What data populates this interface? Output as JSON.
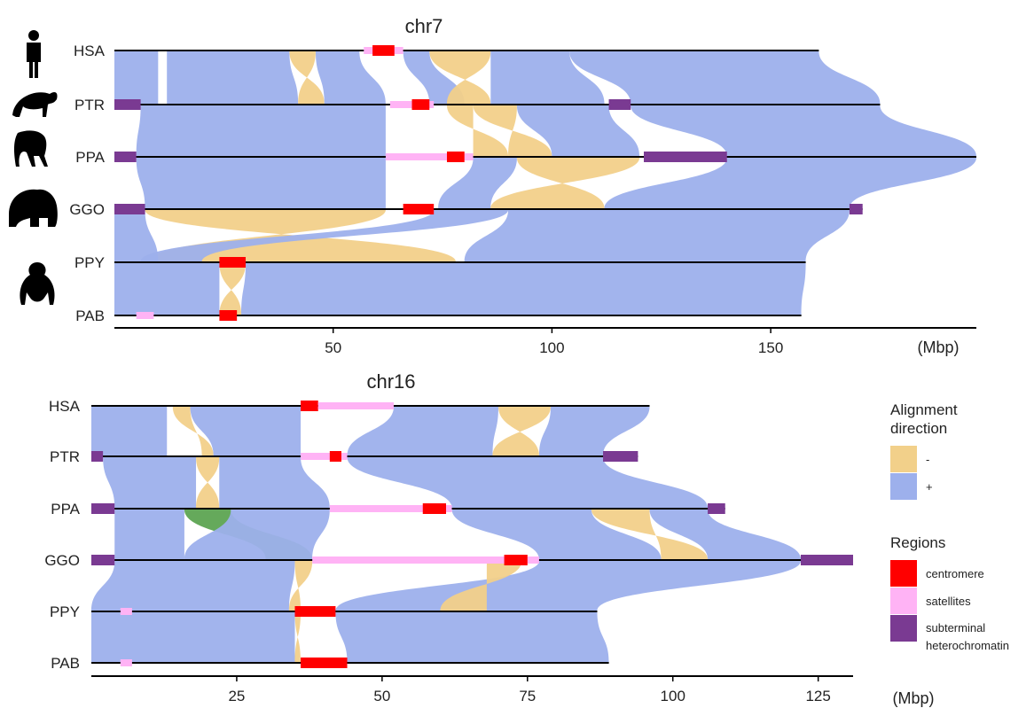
{
  "chart_data": [
    {
      "type": "synteny",
      "title": "chr7",
      "xlabel": "(Mbp)",
      "xlim": [
        0,
        197
      ],
      "ticks": [
        50,
        100,
        150
      ],
      "tracks": [
        {
          "name": "HSA",
          "length": 161,
          "icon": "human-icon",
          "regions": [
            {
              "type": "satellites",
              "start": 57,
              "end": 66
            },
            {
              "type": "centromere",
              "start": 59,
              "end": 64
            }
          ]
        },
        {
          "name": "PTR",
          "length": 175,
          "icon": "chimpanzee-icon",
          "regions": [
            {
              "type": "subterminal",
              "start": 0,
              "end": 6
            },
            {
              "type": "satellites",
              "start": 63,
              "end": 73
            },
            {
              "type": "centromere",
              "start": 68,
              "end": 72
            },
            {
              "type": "subterminal",
              "start": 113,
              "end": 118
            }
          ]
        },
        {
          "name": "PPA",
          "length": 197,
          "icon": "bonobo-icon",
          "regions": [
            {
              "type": "subterminal",
              "start": 0,
              "end": 5
            },
            {
              "type": "satellites",
              "start": 62,
              "end": 82
            },
            {
              "type": "centromere",
              "start": 76,
              "end": 80
            },
            {
              "type": "subterminal",
              "start": 121,
              "end": 140
            }
          ]
        },
        {
          "name": "GGO",
          "length": 171,
          "icon": "gorilla-icon",
          "regions": [
            {
              "type": "subterminal",
              "start": 0,
              "end": 7
            },
            {
              "type": "centromere",
              "start": 66,
              "end": 73
            },
            {
              "type": "subterminal",
              "start": 168,
              "end": 171
            }
          ]
        },
        {
          "name": "PPY",
          "length": 158,
          "icon": "orangutan-icon",
          "regions": [
            {
              "type": "centromere",
              "start": 24,
              "end": 30
            }
          ]
        },
        {
          "name": "PAB",
          "length": 157,
          "regions": [
            {
              "type": "satellites",
              "start": 5,
              "end": 9
            },
            {
              "type": "centromere",
              "start": 24,
              "end": 28
            }
          ]
        }
      ],
      "links": [
        {
          "from": 0,
          "a1": 0,
          "a2": 10,
          "b1": 0,
          "b2": 10,
          "dir": "+"
        },
        {
          "from": 0,
          "a1": 12,
          "a2": 40,
          "b1": 12,
          "b2": 42,
          "dir": "+"
        },
        {
          "from": 0,
          "a1": 40,
          "a2": 46,
          "b1": 42,
          "b2": 48,
          "dir": "-"
        },
        {
          "from": 0,
          "a1": 46,
          "a2": 56,
          "b1": 48,
          "b2": 62,
          "dir": "+"
        },
        {
          "from": 0,
          "a1": 66,
          "a2": 72,
          "b1": 72,
          "b2": 80,
          "dir": "+"
        },
        {
          "from": 0,
          "a1": 72,
          "a2": 86,
          "b1": 76,
          "b2": 86,
          "dir": "-"
        },
        {
          "from": 0,
          "a1": 86,
          "a2": 104,
          "b1": 86,
          "b2": 112,
          "dir": "+"
        },
        {
          "from": 0,
          "a1": 104,
          "a2": 161,
          "b1": 118,
          "b2": 175,
          "dir": "+"
        },
        {
          "from": 1,
          "a1": 6,
          "a2": 62,
          "b1": 5,
          "b2": 62,
          "dir": "+"
        },
        {
          "from": 1,
          "a1": 76,
          "a2": 82,
          "b1": 82,
          "b2": 90,
          "dir": "-"
        },
        {
          "from": 1,
          "a1": 82,
          "a2": 92,
          "b1": 90,
          "b2": 100,
          "dir": "-"
        },
        {
          "from": 1,
          "a1": 92,
          "a2": 113,
          "b1": 100,
          "b2": 120,
          "dir": "+"
        },
        {
          "from": 1,
          "a1": 118,
          "a2": 175,
          "b1": 140,
          "b2": 197,
          "dir": "+"
        },
        {
          "from": 2,
          "a1": 5,
          "a2": 62,
          "b1": 7,
          "b2": 62,
          "dir": "+"
        },
        {
          "from": 2,
          "a1": 82,
          "a2": 92,
          "b1": 74,
          "b2": 86,
          "dir": "+"
        },
        {
          "from": 2,
          "a1": 92,
          "a2": 120,
          "b1": 86,
          "b2": 112,
          "dir": "-"
        },
        {
          "from": 2,
          "a1": 140,
          "a2": 197,
          "b1": 112,
          "b2": 168,
          "dir": "+"
        },
        {
          "from": 3,
          "a1": 7,
          "a2": 62,
          "b1": 8,
          "b2": 78,
          "dir": "-"
        },
        {
          "from": 3,
          "a1": 0,
          "a2": 7,
          "b1": 0,
          "b2": 10,
          "dir": "+"
        },
        {
          "from": 3,
          "a1": 73,
          "a2": 90,
          "b1": 6,
          "b2": 20,
          "dir": "+"
        },
        {
          "from": 3,
          "a1": 90,
          "a2": 168,
          "b1": 80,
          "b2": 158,
          "dir": "+"
        },
        {
          "from": 4,
          "a1": 0,
          "a2": 24,
          "b1": 0,
          "b2": 24,
          "dir": "+"
        },
        {
          "from": 4,
          "a1": 24,
          "a2": 30,
          "b1": 24,
          "b2": 29,
          "dir": "-"
        },
        {
          "from": 4,
          "a1": 30,
          "a2": 158,
          "b1": 29,
          "b2": 157,
          "dir": "+"
        }
      ]
    },
    {
      "type": "synteny",
      "title": "chr16",
      "xlabel": "(Mbp)",
      "xlim": [
        0,
        131
      ],
      "ticks": [
        25,
        50,
        75,
        100,
        125
      ],
      "tracks": [
        {
          "name": "HSA",
          "length": 96,
          "regions": [
            {
              "type": "centromere",
              "start": 36,
              "end": 39
            },
            {
              "type": "satellites",
              "start": 39,
              "end": 52
            }
          ]
        },
        {
          "name": "PTR",
          "length": 94,
          "regions": [
            {
              "type": "subterminal",
              "start": 0,
              "end": 2
            },
            {
              "type": "satellites",
              "start": 36,
              "end": 44
            },
            {
              "type": "centromere",
              "start": 41,
              "end": 43
            },
            {
              "type": "subterminal",
              "start": 88,
              "end": 94
            }
          ]
        },
        {
          "name": "PPA",
          "length": 109,
          "regions": [
            {
              "type": "subterminal",
              "start": 0,
              "end": 4
            },
            {
              "type": "satellites",
              "start": 41,
              "end": 62
            },
            {
              "type": "centromere",
              "start": 57,
              "end": 61
            },
            {
              "type": "subterminal",
              "start": 106,
              "end": 109
            }
          ]
        },
        {
          "name": "GGO",
          "length": 131,
          "regions": [
            {
              "type": "subterminal",
              "start": 0,
              "end": 4
            },
            {
              "type": "satellites",
              "start": 38,
              "end": 77
            },
            {
              "type": "centromere",
              "start": 71,
              "end": 75
            },
            {
              "type": "subterminal",
              "start": 122,
              "end": 131
            }
          ]
        },
        {
          "name": "PPY",
          "length": 87,
          "regions": [
            {
              "type": "satellites",
              "start": 5,
              "end": 7
            },
            {
              "type": "centromere",
              "start": 35,
              "end": 42
            }
          ]
        },
        {
          "name": "PAB",
          "length": 89,
          "regions": [
            {
              "type": "satellites",
              "start": 5,
              "end": 7
            },
            {
              "type": "centromere",
              "start": 36,
              "end": 44
            }
          ]
        }
      ],
      "links": [
        {
          "from": 0,
          "a1": 0,
          "a2": 13,
          "b1": 0,
          "b2": 13,
          "dir": "+"
        },
        {
          "from": 0,
          "a1": 14,
          "a2": 17,
          "b1": 19,
          "b2": 21,
          "dir": "-"
        },
        {
          "from": 0,
          "a1": 17,
          "a2": 36,
          "b1": 21,
          "b2": 36,
          "dir": "+"
        },
        {
          "from": 0,
          "a1": 52,
          "a2": 70,
          "b1": 44,
          "b2": 69,
          "dir": "+"
        },
        {
          "from": 0,
          "a1": 70,
          "a2": 79,
          "b1": 69,
          "b2": 77,
          "dir": "-"
        },
        {
          "from": 0,
          "a1": 79,
          "a2": 96,
          "b1": 77,
          "b2": 88,
          "dir": "+"
        },
        {
          "from": 1,
          "a1": 2,
          "a2": 18,
          "b1": 4,
          "b2": 18,
          "dir": "+"
        },
        {
          "from": 1,
          "a1": 18,
          "a2": 22,
          "b1": 18,
          "b2": 22,
          "dir": "-"
        },
        {
          "from": 1,
          "a1": 22,
          "a2": 36,
          "b1": 22,
          "b2": 41,
          "dir": "+"
        },
        {
          "from": 1,
          "a1": 44,
          "a2": 88,
          "b1": 62,
          "b2": 106,
          "dir": "+"
        },
        {
          "from": 2,
          "a1": 4,
          "a2": 16,
          "b1": 4,
          "b2": 16,
          "dir": "+"
        },
        {
          "from": 2,
          "a1": 16,
          "a2": 24,
          "b1": 30,
          "b2": 38,
          "dir": "green"
        },
        {
          "from": 2,
          "a1": 24,
          "a2": 41,
          "b1": 16,
          "b2": 38,
          "dir": "+"
        },
        {
          "from": 2,
          "a1": 62,
          "a2": 86,
          "b1": 77,
          "b2": 98,
          "dir": "+"
        },
        {
          "from": 2,
          "a1": 86,
          "a2": 96,
          "b1": 98,
          "b2": 106,
          "dir": "-"
        },
        {
          "from": 2,
          "a1": 96,
          "a2": 106,
          "b1": 106,
          "b2": 122,
          "dir": "+"
        },
        {
          "from": 3,
          "a1": 4,
          "a2": 35,
          "b1": 0,
          "b2": 34,
          "dir": "+"
        },
        {
          "from": 3,
          "a1": 35,
          "a2": 38,
          "b1": 34,
          "b2": 36,
          "dir": "-"
        },
        {
          "from": 3,
          "a1": 77,
          "a2": 122,
          "b1": 42,
          "b2": 87,
          "dir": "+"
        },
        {
          "from": 3,
          "a1": 68,
          "a2": 74,
          "b1": 60,
          "b2": 68,
          "dir": "-"
        },
        {
          "from": 4,
          "a1": 0,
          "a2": 35,
          "b1": 0,
          "b2": 35,
          "dir": "+"
        },
        {
          "from": 4,
          "a1": 35,
          "a2": 36,
          "b1": 35,
          "b2": 36,
          "dir": "-"
        },
        {
          "from": 4,
          "a1": 42,
          "a2": 87,
          "b1": 44,
          "b2": 89,
          "dir": "+"
        }
      ]
    }
  ],
  "legend": {
    "direction_title": "Alignment direction",
    "direction_items": [
      {
        "label": "-",
        "color": "#f2d08a"
      },
      {
        "label": "+",
        "color": "#9db0ec"
      }
    ],
    "regions_title": "Regions",
    "region_items": [
      {
        "key": "centromere",
        "label": "centromere",
        "color": "#ff0000"
      },
      {
        "key": "satellites",
        "label": "satellites",
        "color": "#ffb3f5"
      },
      {
        "key": "subterminal",
        "label": "subterminal heterochromatin",
        "color": "#7a3a92"
      }
    ]
  },
  "colors": {
    "plus": "#9db0ec",
    "minus": "#f2d08a",
    "green": "#4a9a3e"
  }
}
